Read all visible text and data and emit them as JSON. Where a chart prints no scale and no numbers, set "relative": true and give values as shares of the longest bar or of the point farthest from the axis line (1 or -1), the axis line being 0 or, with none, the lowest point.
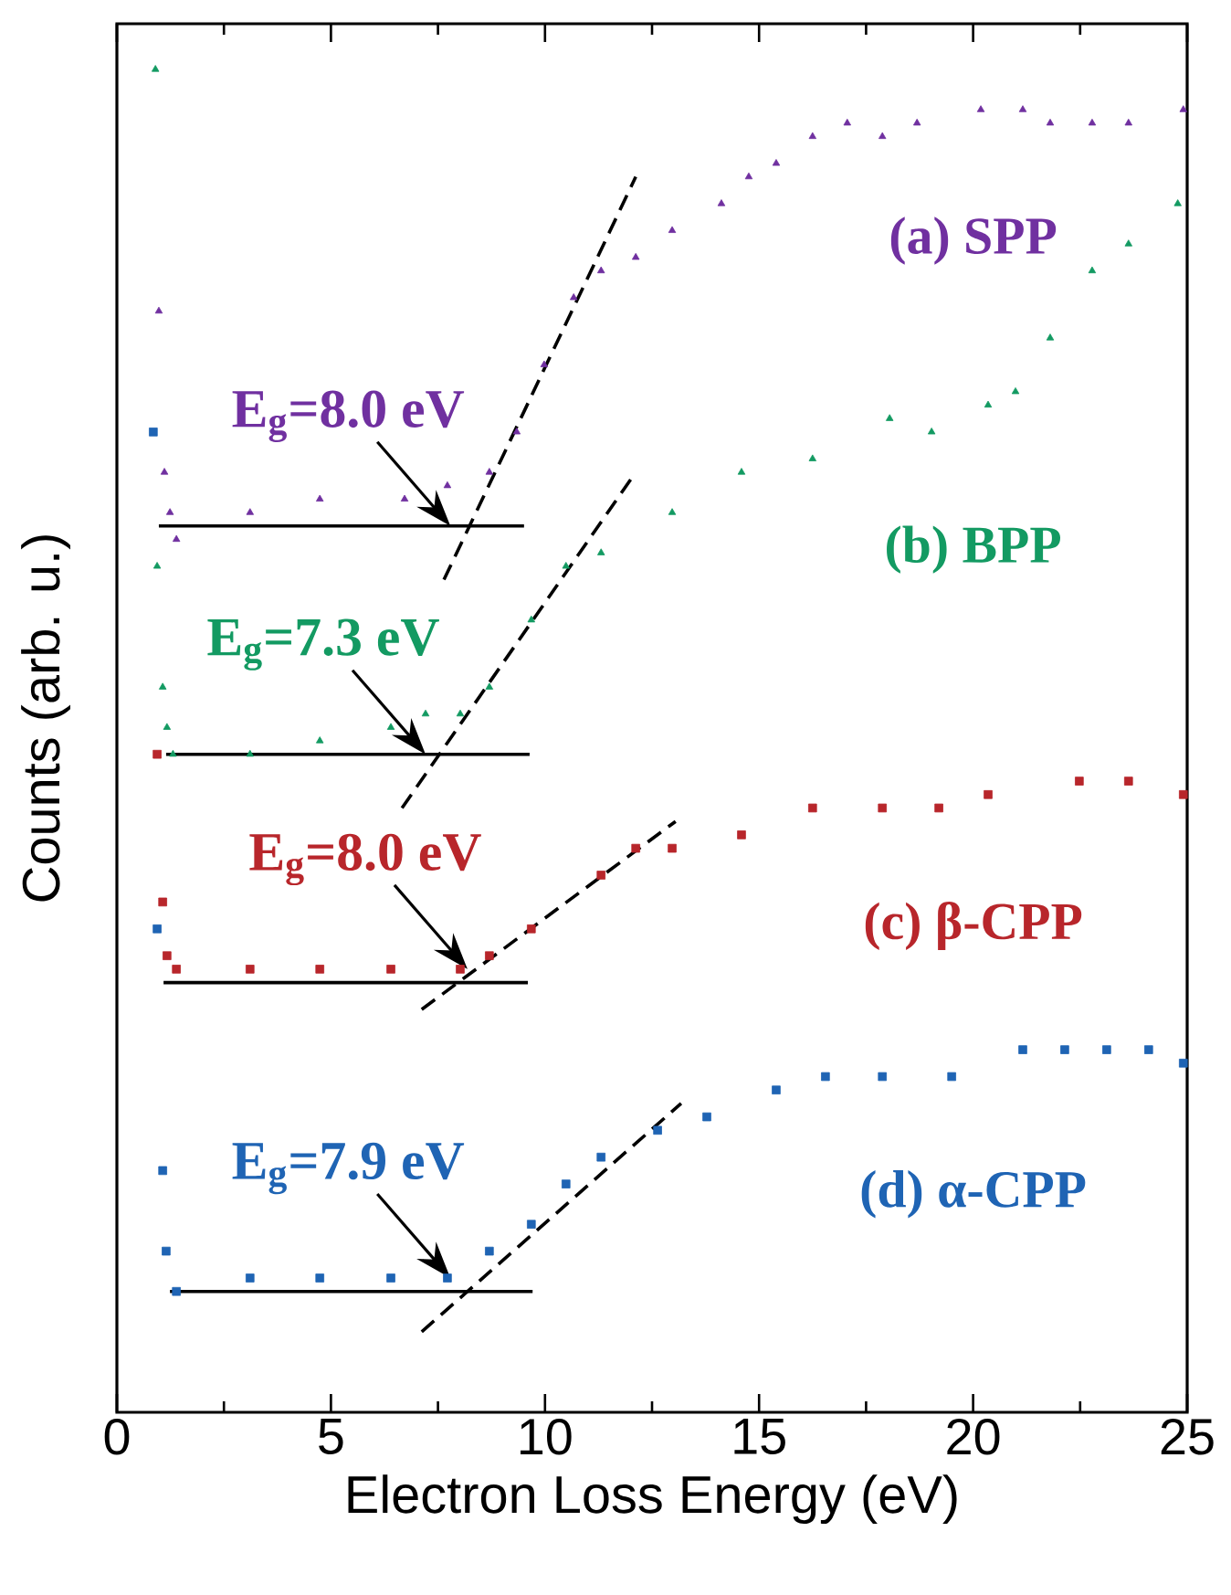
{
  "chart_data": {
    "type": "scatter",
    "relative": true,
    "xlabel": "Electron Loss Energy (eV)",
    "ylabel": "Counts (arb. u.)",
    "xlim": [
      0,
      25
    ],
    "xticks": [
      0,
      5,
      10,
      15,
      20,
      25
    ],
    "series": [
      {
        "name": "(a) SPP",
        "color": "#7030a0",
        "marker": "triangle",
        "x": [
          0.98,
          1.11,
          1.24,
          1.39,
          3.11,
          4.74,
          6.72,
          7.72,
          8.7,
          9.34,
          9.98,
          10.67,
          11.31,
          12.12,
          12.97,
          14.12,
          14.76,
          15.4,
          16.25,
          17.06,
          17.88,
          18.69,
          20.18,
          21.16,
          21.8,
          22.78,
          23.63,
          24.91
        ],
        "values": [
          0.82,
          0.7,
          0.67,
          0.65,
          0.67,
          0.68,
          0.68,
          0.69,
          0.7,
          0.73,
          0.78,
          0.83,
          0.85,
          0.86,
          0.88,
          0.9,
          0.92,
          0.93,
          0.95,
          0.96,
          0.95,
          0.96,
          0.97,
          0.97,
          0.96,
          0.96,
          0.96,
          0.97
        ]
      },
      {
        "name": "(b) BPP",
        "color": "#139a62",
        "marker": "triangle",
        "x": [
          0.9,
          0.94,
          1.07,
          1.17,
          1.31,
          3.11,
          4.74,
          6.4,
          7.21,
          8.02,
          8.7,
          9.68,
          10.49,
          11.31,
          12.97,
          14.59,
          16.25,
          18.05,
          19.03,
          20.35,
          20.99,
          21.8,
          22.78,
          23.63,
          24.78
        ],
        "values": [
          1.0,
          0.63,
          0.54,
          0.51,
          0.49,
          0.49,
          0.5,
          0.51,
          0.52,
          0.52,
          0.54,
          0.59,
          0.63,
          0.64,
          0.67,
          0.7,
          0.71,
          0.74,
          0.73,
          0.75,
          0.76,
          0.8,
          0.85,
          0.87,
          0.9
        ]
      },
      {
        "name": "(c) β-CPP",
        "color": "#b8262b",
        "marker": "square",
        "x": [
          0.94,
          1.07,
          1.17,
          1.39,
          3.11,
          4.74,
          6.4,
          8.02,
          8.7,
          9.68,
          11.31,
          12.12,
          12.97,
          14.59,
          16.25,
          17.88,
          19.2,
          20.35,
          22.48,
          23.63,
          24.91
        ],
        "values": [
          0.49,
          0.38,
          0.34,
          0.33,
          0.33,
          0.33,
          0.33,
          0.33,
          0.34,
          0.36,
          0.4,
          0.42,
          0.42,
          0.43,
          0.45,
          0.45,
          0.45,
          0.46,
          0.47,
          0.47,
          0.46
        ]
      },
      {
        "name": "(d) α-CPP",
        "color": "#1f64b4",
        "marker": "square",
        "x": [
          0.85,
          0.94,
          1.07,
          1.15,
          1.39,
          3.11,
          4.74,
          6.4,
          7.72,
          8.7,
          9.68,
          10.49,
          11.31,
          12.63,
          13.78,
          15.4,
          16.55,
          17.88,
          19.5,
          21.16,
          22.14,
          23.12,
          24.1,
          24.91
        ],
        "values": [
          0.73,
          0.36,
          0.18,
          0.12,
          0.09,
          0.1,
          0.1,
          0.1,
          0.1,
          0.12,
          0.14,
          0.17,
          0.19,
          0.21,
          0.22,
          0.24,
          0.25,
          0.25,
          0.25,
          0.27,
          0.27,
          0.27,
          0.27,
          0.26
        ]
      },
      {
        "type": "line",
        "color": "#000000",
        "line_style": "dashed",
        "x": [
          7.64,
          12.12
        ],
        "values": [
          0.62,
          0.92
        ]
      },
      {
        "type": "line",
        "color": "#000000",
        "line_style": "dashed",
        "x": [
          6.66,
          12.12
        ],
        "values": [
          0.45,
          0.7
        ]
      },
      {
        "type": "line",
        "color": "#000000",
        "line_style": "dashed",
        "x": [
          7.12,
          13.05
        ],
        "values": [
          0.3,
          0.44
        ]
      },
      {
        "type": "line",
        "color": "#000000",
        "line_style": "dashed",
        "x": [
          7.12,
          13.18
        ],
        "values": [
          0.06,
          0.23
        ]
      },
      {
        "type": "line",
        "color": "#000000",
        "line_style": "solid",
        "x": [
          0.98,
          9.51
        ],
        "values": [
          0.66,
          0.66
        ]
      },
      {
        "type": "line",
        "color": "#000000",
        "line_style": "solid",
        "x": [
          1.15,
          9.64
        ],
        "values": [
          0.49,
          0.49
        ]
      },
      {
        "type": "line",
        "color": "#000000",
        "line_style": "solid",
        "x": [
          1.09,
          9.6
        ],
        "values": [
          0.32,
          0.32
        ]
      },
      {
        "type": "line",
        "color": "#000000",
        "line_style": "solid",
        "x": [
          1.24,
          9.71
        ],
        "values": [
          0.09,
          0.09
        ]
      }
    ],
    "annotations": [
      {
        "text": "E$_{g}$=8.0 eV",
        "x": 7.79,
        "y": 0.66
      },
      {
        "text": "E$_{g}$=7.3 eV",
        "x": 7.21,
        "y": 0.49
      },
      {
        "text": "E$_{g}$=8.0 eV",
        "x": 8.19,
        "y": 0.33
      },
      {
        "text": "E$_{g}$=7.9 eV",
        "x": 7.79,
        "y": 0.1
      }
    ]
  }
}
